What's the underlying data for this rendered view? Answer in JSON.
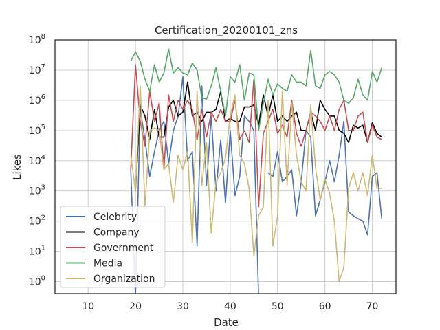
{
  "chart_data": {
    "type": "line",
    "title": "Certification_20200101_zns",
    "xlabel": "Date",
    "ylabel": "Likes",
    "xlim": [
      3,
      75
    ],
    "ylim": [
      0.4,
      100000000
    ],
    "yscale": "log",
    "grid": true,
    "legend_position": "lower-left",
    "x_ticks": [
      10,
      20,
      30,
      40,
      50,
      60,
      70
    ],
    "y_ticks": [
      {
        "value": 1,
        "base": "10",
        "exp": "0"
      },
      {
        "value": 10,
        "base": "10",
        "exp": "1"
      },
      {
        "value": 100,
        "base": "10",
        "exp": "2"
      },
      {
        "value": 1000,
        "base": "10",
        "exp": "3"
      },
      {
        "value": 10000,
        "base": "10",
        "exp": "4"
      },
      {
        "value": 100000,
        "base": "10",
        "exp": "5"
      },
      {
        "value": 1000000,
        "base": "10",
        "exp": "6"
      },
      {
        "value": 10000000,
        "base": "10",
        "exp": "7"
      },
      {
        "value": 100000000,
        "base": "10",
        "exp": "8"
      }
    ],
    "x": [
      19,
      20,
      21,
      22,
      23,
      24,
      25,
      26,
      27,
      28,
      29,
      30,
      31,
      32,
      33,
      34,
      35,
      36,
      37,
      38,
      39,
      40,
      41,
      42,
      43,
      44,
      45,
      46,
      47,
      48,
      49,
      50,
      51,
      52,
      53,
      54,
      55,
      56,
      57,
      58,
      59,
      60,
      61,
      62,
      63,
      64,
      65,
      66,
      67,
      68,
      69,
      70,
      71,
      72
    ],
    "series": [
      {
        "name": "Celebrity",
        "color": "#4c72b0",
        "values": [
          5000,
          0.3,
          500000,
          50000,
          3000,
          20000,
          100000,
          200000,
          8000,
          100000,
          300000,
          6000000,
          10000,
          20000,
          15,
          3000000,
          1500,
          300000,
          1000,
          50000,
          400,
          100000,
          700,
          3000,
          300000,
          200000,
          100000,
          0.3,
          null,
          4000,
          3000,
          20000,
          2000,
          3000,
          5000,
          150,
          2000,
          100000,
          60000,
          150,
          500,
          2000,
          10000,
          2000,
          15000,
          200000,
          200,
          150,
          120,
          100,
          35,
          3000,
          4000,
          120
        ]
      },
      {
        "name": "Company",
        "color": "#000000",
        "values": [
          null,
          1000,
          700000,
          300000,
          50000,
          500000,
          60000,
          60000,
          600000,
          1000000,
          300000,
          400000,
          4000000,
          300000,
          400000,
          200000,
          400000,
          400000,
          500000,
          2000000,
          200000,
          250000,
          200000,
          200000,
          600000,
          600000,
          700000,
          150000,
          1500000,
          300000,
          1500000,
          200000,
          300000,
          200000,
          300000,
          400000,
          100000,
          100000,
          400000,
          100000,
          1000000,
          500000,
          300000,
          300000,
          100000,
          80000,
          40000,
          150000,
          120000,
          150000,
          40000,
          180000,
          80000,
          60000
        ]
      },
      {
        "name": "Government",
        "color": "#c44e52",
        "values": [
          5000,
          15000000,
          200000,
          30000,
          2000000,
          200000,
          800000,
          5000,
          1500000,
          200000,
          1000000,
          500000,
          1000000,
          500000,
          50000,
          500000,
          60000,
          400000,
          200000,
          500000,
          200000,
          200000,
          1000000,
          50000,
          100000,
          40000,
          5000000,
          300,
          80000,
          200000,
          500000,
          80000,
          150000,
          60000,
          1000000,
          80000,
          30000,
          100000,
          400000,
          300000,
          200000,
          100000,
          300000,
          100000,
          500000,
          1000000,
          100000,
          100000,
          300000,
          400000,
          40000,
          150000,
          60000,
          50000
        ]
      },
      {
        "name": "Media",
        "color": "#55a868",
        "values": [
          20000000,
          40000000,
          20000000,
          5000000,
          2000000,
          15000000,
          4000000,
          8000000,
          50000000,
          8000000,
          12000000,
          8000000,
          7000000,
          17000000,
          10000000,
          1200000,
          1100000,
          3000000,
          12000000,
          2000000,
          300000,
          6000000,
          4000000,
          15000000,
          1000000,
          8000000,
          7000000,
          100000,
          800000,
          5000000,
          1500000,
          3500000,
          2500000,
          2000000,
          7000000,
          4000000,
          4000000,
          3000000,
          45000000,
          3000000,
          2500000,
          7000000,
          9000000,
          7000000,
          4000000,
          1000000,
          800000,
          1200000,
          5000000,
          1500000,
          1000000,
          9000000,
          4000000,
          12000000
        ]
      },
      {
        "name": "Organization",
        "color": "#ccb974",
        "values": [
          15000,
          1000,
          3000000,
          300,
          100000,
          120000,
          100000,
          5000,
          8000,
          400,
          15000,
          5000,
          20000,
          20,
          2000000,
          1500,
          40000,
          40,
          2000,
          4000,
          12000,
          300000,
          1500000,
          15000,
          8000,
          1200,
          7,
          150,
          300,
          1000000,
          15,
          150,
          2000000,
          1500,
          800000,
          15000,
          2000,
          1000,
          700000,
          6000,
          500,
          2500,
          800,
          100,
          1,
          3,
          1200,
          4000,
          1000,
          4000,
          700,
          15000,
          1200,
          1200
        ]
      }
    ]
  }
}
